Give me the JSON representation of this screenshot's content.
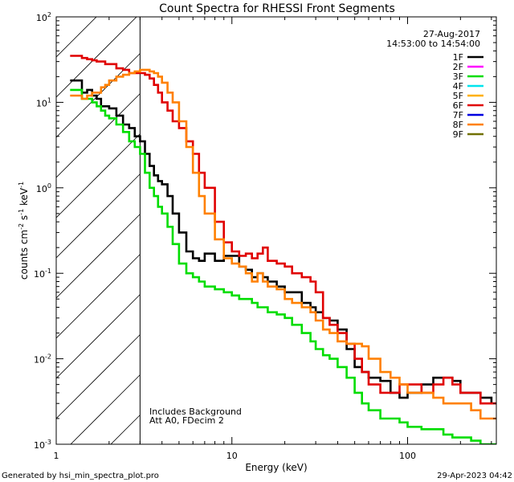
{
  "chart_data": {
    "type": "line",
    "title": "Count Spectra for RHESSI Front Segments",
    "xlabel": "Energy (keV)",
    "ylabel_parts": [
      "counts cm",
      "-2",
      " s",
      "-1",
      " keV",
      "-1"
    ],
    "xscale": "log",
    "yscale": "log",
    "xlim": [
      1,
      320
    ],
    "ylim": [
      0.001,
      100
    ],
    "x_ticks": [
      {
        "value": 1,
        "label": "1"
      },
      {
        "value": 10,
        "label": "10"
      },
      {
        "value": 100,
        "label": "100"
      }
    ],
    "y_ticks": [
      {
        "value": 0.001,
        "base": "10",
        "exp": "-3"
      },
      {
        "value": 0.01,
        "base": "10",
        "exp": "-2"
      },
      {
        "value": 0.1,
        "base": "10",
        "exp": "-1"
      },
      {
        "value": 1,
        "base": "10",
        "exp": "0"
      },
      {
        "value": 10,
        "base": "10",
        "exp": "1"
      },
      {
        "value": 100,
        "base": "10",
        "exp": "2"
      }
    ],
    "date": "27-Aug-2017",
    "time_range": "14:53:00 to 14:54:00",
    "excluded_region": {
      "x_from": 1,
      "x_to": 3
    },
    "annotations": [
      "Includes Background",
      "Att A0, FDecim 2"
    ],
    "legend": [
      {
        "label": "1F",
        "color": "#000000"
      },
      {
        "label": "2F",
        "color": "#ff00ff"
      },
      {
        "label": "3F",
        "color": "#00dd00"
      },
      {
        "label": "4F",
        "color": "#00e5ee"
      },
      {
        "label": "5F",
        "color": "#ffb000"
      },
      {
        "label": "6F",
        "color": "#e00000"
      },
      {
        "label": "7F",
        "color": "#0000e0"
      },
      {
        "label": "8F",
        "color": "#ff8000"
      },
      {
        "label": "9F",
        "color": "#707000"
      }
    ],
    "series": [
      {
        "name": "1F",
        "color": "#000000",
        "x": [
          1.2,
          1.3,
          1.4,
          1.5,
          1.6,
          1.7,
          1.8,
          1.9,
          2.0,
          2.2,
          2.4,
          2.6,
          2.8,
          3.0,
          3.2,
          3.4,
          3.6,
          3.8,
          4.0,
          4.3,
          4.6,
          5.0,
          5.5,
          6.0,
          6.5,
          7.0,
          8.0,
          9.0,
          10,
          11,
          12,
          13,
          14,
          15,
          16,
          18,
          20,
          22,
          25,
          28,
          30,
          33,
          36,
          40,
          45,
          50,
          55,
          60,
          70,
          80,
          90,
          100,
          120,
          140,
          160,
          180,
          200,
          230,
          260,
          300
        ],
        "y": [
          18,
          18,
          13,
          14,
          12,
          11,
          9,
          9,
          8.5,
          7,
          5.5,
          5,
          4,
          3.5,
          2.5,
          1.8,
          1.4,
          1.2,
          1.1,
          0.8,
          0.5,
          0.3,
          0.18,
          0.15,
          0.14,
          0.17,
          0.14,
          0.16,
          0.16,
          0.12,
          0.11,
          0.09,
          0.1,
          0.09,
          0.08,
          0.07,
          0.06,
          0.06,
          0.045,
          0.04,
          0.035,
          0.03,
          0.028,
          0.022,
          0.013,
          0.008,
          0.007,
          0.006,
          0.0055,
          0.004,
          0.0035,
          0.004,
          0.005,
          0.006,
          0.006,
          0.0055,
          0.004,
          0.004,
          0.0035,
          0.003
        ]
      },
      {
        "name": "3F",
        "color": "#00dd00",
        "x": [
          1.2,
          1.3,
          1.4,
          1.5,
          1.6,
          1.7,
          1.8,
          1.9,
          2.0,
          2.2,
          2.4,
          2.6,
          2.8,
          3.0,
          3.2,
          3.4,
          3.6,
          3.8,
          4.0,
          4.3,
          4.6,
          5.0,
          5.5,
          6.0,
          6.5,
          7.0,
          8.0,
          9.0,
          10,
          11,
          12,
          13,
          14,
          15,
          16,
          18,
          20,
          22,
          25,
          28,
          30,
          33,
          36,
          40,
          45,
          50,
          55,
          60,
          70,
          80,
          90,
          100,
          120,
          140,
          160,
          180,
          200,
          230,
          260,
          300
        ],
        "y": [
          14,
          14,
          11,
          11,
          10,
          9,
          8,
          7,
          6.5,
          5.5,
          4.5,
          3.5,
          3,
          2.5,
          1.5,
          1.0,
          0.8,
          0.6,
          0.5,
          0.35,
          0.22,
          0.13,
          0.1,
          0.09,
          0.08,
          0.07,
          0.065,
          0.06,
          0.055,
          0.05,
          0.05,
          0.045,
          0.04,
          0.04,
          0.035,
          0.033,
          0.03,
          0.025,
          0.02,
          0.016,
          0.013,
          0.011,
          0.01,
          0.008,
          0.006,
          0.004,
          0.003,
          0.0025,
          0.002,
          0.002,
          0.0018,
          0.0016,
          0.0015,
          0.0015,
          0.0013,
          0.0012,
          0.0012,
          0.0011,
          0.001,
          0.001
        ]
      },
      {
        "name": "6F",
        "color": "#e00000",
        "x": [
          1.2,
          1.3,
          1.4,
          1.5,
          1.6,
          1.7,
          1.8,
          1.9,
          2.0,
          2.2,
          2.4,
          2.6,
          2.8,
          3.0,
          3.2,
          3.4,
          3.6,
          3.8,
          4.0,
          4.3,
          4.6,
          5.0,
          5.5,
          6.0,
          6.5,
          7.0,
          8.0,
          9.0,
          10,
          11,
          12,
          13,
          14,
          15,
          16,
          18,
          20,
          22,
          25,
          28,
          30,
          33,
          36,
          40,
          45,
          50,
          55,
          60,
          70,
          80,
          90,
          100,
          120,
          140,
          160,
          180,
          200,
          230,
          260,
          300
        ],
        "y": [
          35,
          35,
          33,
          32,
          31,
          30,
          30,
          28,
          28,
          25,
          24,
          22,
          22,
          22,
          21,
          19,
          16,
          13,
          10,
          8,
          6,
          5,
          3.5,
          2.5,
          1.5,
          1.0,
          0.4,
          0.23,
          0.18,
          0.16,
          0.17,
          0.15,
          0.17,
          0.2,
          0.14,
          0.13,
          0.12,
          0.1,
          0.09,
          0.08,
          0.06,
          0.03,
          0.025,
          0.02,
          0.015,
          0.01,
          0.007,
          0.005,
          0.004,
          0.004,
          0.005,
          0.005,
          0.004,
          0.005,
          0.006,
          0.005,
          0.004,
          0.004,
          0.003,
          0.003
        ]
      },
      {
        "name": "8F",
        "color": "#ff8000",
        "x": [
          1.2,
          1.3,
          1.4,
          1.5,
          1.6,
          1.7,
          1.8,
          1.9,
          2.0,
          2.2,
          2.4,
          2.6,
          2.8,
          3.0,
          3.2,
          3.4,
          3.6,
          3.8,
          4.0,
          4.3,
          4.6,
          5.0,
          5.5,
          6.0,
          6.5,
          7.0,
          8.0,
          9.0,
          10,
          11,
          12,
          13,
          14,
          15,
          16,
          18,
          20,
          22,
          25,
          28,
          30,
          33,
          36,
          40,
          45,
          50,
          55,
          60,
          70,
          80,
          90,
          100,
          120,
          140,
          160,
          180,
          200,
          230,
          260,
          300
        ],
        "y": [
          12,
          12,
          11,
          12,
          13,
          13,
          15,
          16,
          18,
          20,
          21,
          22,
          23,
          24,
          24,
          23,
          22,
          20,
          17,
          13,
          10,
          6,
          3,
          1.5,
          0.8,
          0.5,
          0.25,
          0.15,
          0.13,
          0.12,
          0.1,
          0.08,
          0.1,
          0.08,
          0.07,
          0.065,
          0.05,
          0.045,
          0.04,
          0.035,
          0.028,
          0.022,
          0.02,
          0.016,
          0.015,
          0.015,
          0.014,
          0.01,
          0.007,
          0.006,
          0.005,
          0.004,
          0.004,
          0.0035,
          0.003,
          0.003,
          0.003,
          0.0025,
          0.002,
          0.002
        ]
      }
    ]
  },
  "footer": {
    "left": "Generated by hsi_min_spectra_plot.pro",
    "right": "29-Apr-2023 04:42"
  }
}
